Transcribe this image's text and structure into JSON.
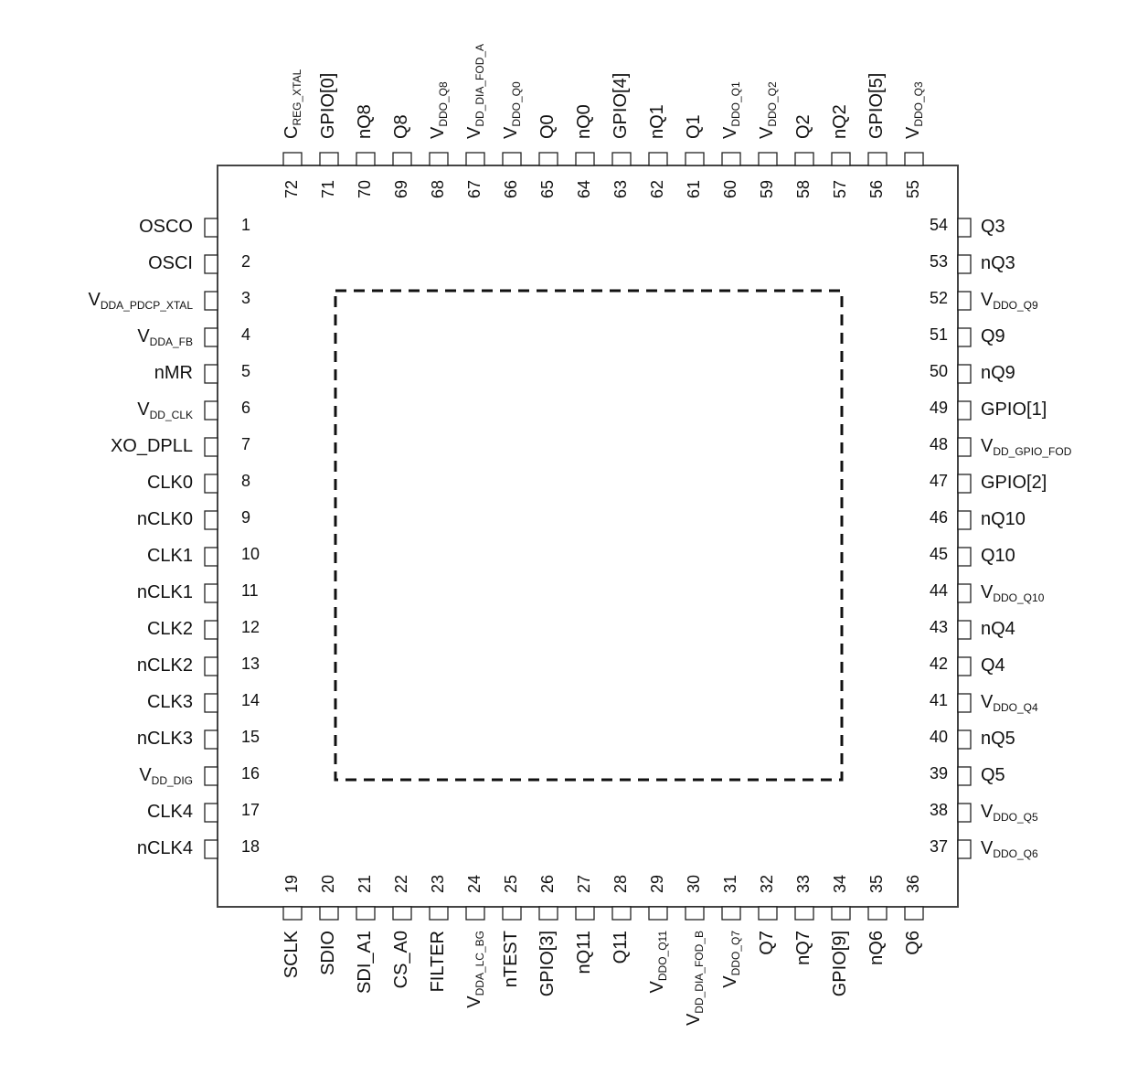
{
  "left": [
    {
      "number": 1,
      "name": "OSCO"
    },
    {
      "number": 2,
      "name": "OSCI"
    },
    {
      "number": 3,
      "name": "V",
      "sub": "DDA_PDCP_XTAL"
    },
    {
      "number": 4,
      "name": "V",
      "sub": "DDA_FB"
    },
    {
      "number": 5,
      "name": "nMR"
    },
    {
      "number": 6,
      "name": "V",
      "sub": "DD_CLK"
    },
    {
      "number": 7,
      "name": "XO_DPLL"
    },
    {
      "number": 8,
      "name": "CLK0"
    },
    {
      "number": 9,
      "name": "nCLK0"
    },
    {
      "number": 10,
      "name": "CLK1"
    },
    {
      "number": 11,
      "name": "nCLK1"
    },
    {
      "number": 12,
      "name": "CLK2"
    },
    {
      "number": 13,
      "name": "nCLK2"
    },
    {
      "number": 14,
      "name": "CLK3"
    },
    {
      "number": 15,
      "name": "nCLK3"
    },
    {
      "number": 16,
      "name": "V",
      "sub": "DD_DIG"
    },
    {
      "number": 17,
      "name": "CLK4"
    },
    {
      "number": 18,
      "name": "nCLK4"
    }
  ],
  "bottom": [
    {
      "number": 19,
      "name": "SCLK"
    },
    {
      "number": 20,
      "name": "SDIO"
    },
    {
      "number": 21,
      "name": "SDI_A1"
    },
    {
      "number": 22,
      "name": "CS_A0"
    },
    {
      "number": 23,
      "name": "FILTER"
    },
    {
      "number": 24,
      "name": "V",
      "sub": "DDA_LC_BG"
    },
    {
      "number": 25,
      "name": "nTEST"
    },
    {
      "number": 26,
      "name": "GPIO[3]"
    },
    {
      "number": 27,
      "name": "nQ11"
    },
    {
      "number": 28,
      "name": "Q11"
    },
    {
      "number": 29,
      "name": "V",
      "sub": "DDO_Q11"
    },
    {
      "number": 30,
      "name": "V",
      "sub": "DD_DIA_FOD_B"
    },
    {
      "number": 31,
      "name": "V",
      "sub": "DDO_Q7"
    },
    {
      "number": 32,
      "name": "Q7"
    },
    {
      "number": 33,
      "name": "nQ7"
    },
    {
      "number": 34,
      "name": "GPIO[9]"
    },
    {
      "number": 35,
      "name": "nQ6"
    },
    {
      "number": 36,
      "name": "Q6"
    }
  ],
  "right": [
    {
      "number": 54,
      "name": "Q3"
    },
    {
      "number": 53,
      "name": "nQ3"
    },
    {
      "number": 52,
      "name": "V",
      "sub": "DDO_Q9"
    },
    {
      "number": 51,
      "name": "Q9"
    },
    {
      "number": 50,
      "name": "nQ9"
    },
    {
      "number": 49,
      "name": "GPIO[1]"
    },
    {
      "number": 48,
      "name": "V",
      "sub": "DD_GPIO_FOD"
    },
    {
      "number": 47,
      "name": "GPIO[2]"
    },
    {
      "number": 46,
      "name": "nQ10"
    },
    {
      "number": 45,
      "name": "Q10"
    },
    {
      "number": 44,
      "name": "V",
      "sub": "DDO_Q10"
    },
    {
      "number": 43,
      "name": "nQ4"
    },
    {
      "number": 42,
      "name": "Q4"
    },
    {
      "number": 41,
      "name": "V",
      "sub": "DDO_Q4"
    },
    {
      "number": 40,
      "name": "nQ5"
    },
    {
      "number": 39,
      "name": "Q5"
    },
    {
      "number": 38,
      "name": "V",
      "sub": "DDO_Q5"
    },
    {
      "number": 37,
      "name": "V",
      "sub": "DDO_Q6"
    }
  ],
  "top": [
    {
      "number": 72,
      "name": "C",
      "sub": "REG_XTAL"
    },
    {
      "number": 71,
      "name": "GPIO[0]"
    },
    {
      "number": 70,
      "name": "nQ8"
    },
    {
      "number": 69,
      "name": "Q8"
    },
    {
      "number": 68,
      "name": "V",
      "sub": "DDO_Q8"
    },
    {
      "number": 67,
      "name": "V",
      "sub": "DD_DIA_FOD_A"
    },
    {
      "number": 66,
      "name": "V",
      "sub": "DDO_Q0"
    },
    {
      "number": 65,
      "name": "Q0"
    },
    {
      "number": 64,
      "name": "nQ0"
    },
    {
      "number": 63,
      "name": "GPIO[4]"
    },
    {
      "number": 62,
      "name": "nQ1"
    },
    {
      "number": 61,
      "name": "Q1"
    },
    {
      "number": 60,
      "name": "V",
      "sub": "DDO_Q1"
    },
    {
      "number": 59,
      "name": "V",
      "sub": "DDO_Q2"
    },
    {
      "number": 58,
      "name": "Q2"
    },
    {
      "number": 57,
      "name": "nQ2"
    },
    {
      "number": 56,
      "name": "GPIO[5]"
    },
    {
      "number": 55,
      "name": "V",
      "sub": "DDO_Q3"
    }
  ]
}
